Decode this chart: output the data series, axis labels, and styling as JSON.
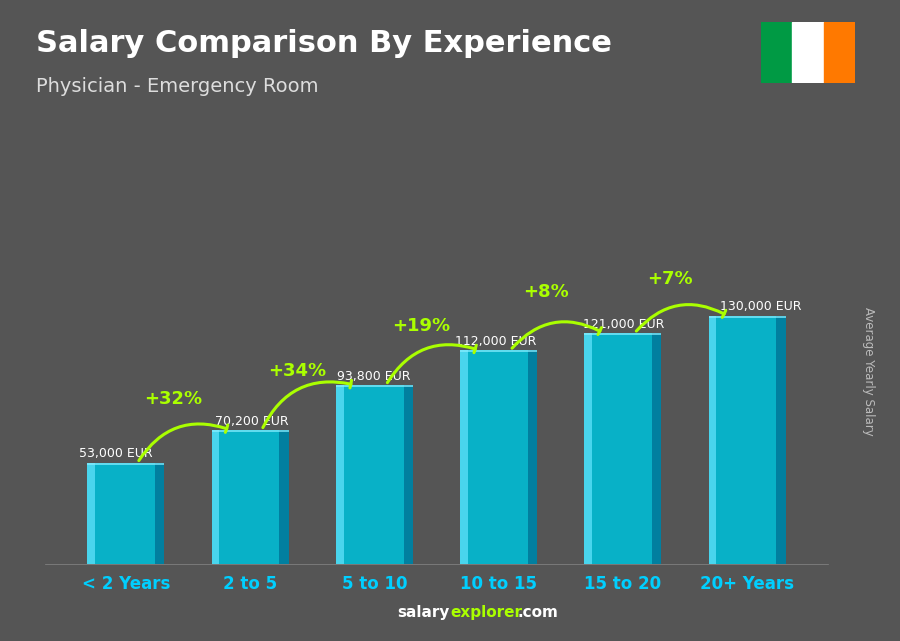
{
  "title": "Salary Comparison By Experience",
  "subtitle": "Physician - Emergency Room",
  "categories": [
    "< 2 Years",
    "2 to 5",
    "5 to 10",
    "10 to 15",
    "15 to 20",
    "20+ Years"
  ],
  "values": [
    53000,
    70200,
    93800,
    112000,
    121000,
    130000
  ],
  "labels": [
    "53,000 EUR",
    "70,200 EUR",
    "93,800 EUR",
    "112,000 EUR",
    "121,000 EUR",
    "130,000 EUR"
  ],
  "pct_changes": [
    "+32%",
    "+34%",
    "+19%",
    "+8%",
    "+7%"
  ],
  "bar_color_main": "#00bcd4",
  "bar_color_light": "#4dd8f0",
  "bar_color_dark": "#0088aa",
  "bar_color_right": "#007799",
  "bg_color": "#555555",
  "text_color": "#ffffff",
  "label_color": "#ffffff",
  "pct_color": "#aaff00",
  "arrow_color": "#aaff00",
  "xlabel_color": "#00cfff",
  "ylabel_text": "Average Yearly Salary",
  "footer_salary": "salary",
  "footer_explorer": "explorer",
  "footer_com": ".com",
  "flag_green": "#009A44",
  "flag_white": "#FFFFFF",
  "flag_orange": "#FF7900",
  "flag_border": "#aaaaaa"
}
